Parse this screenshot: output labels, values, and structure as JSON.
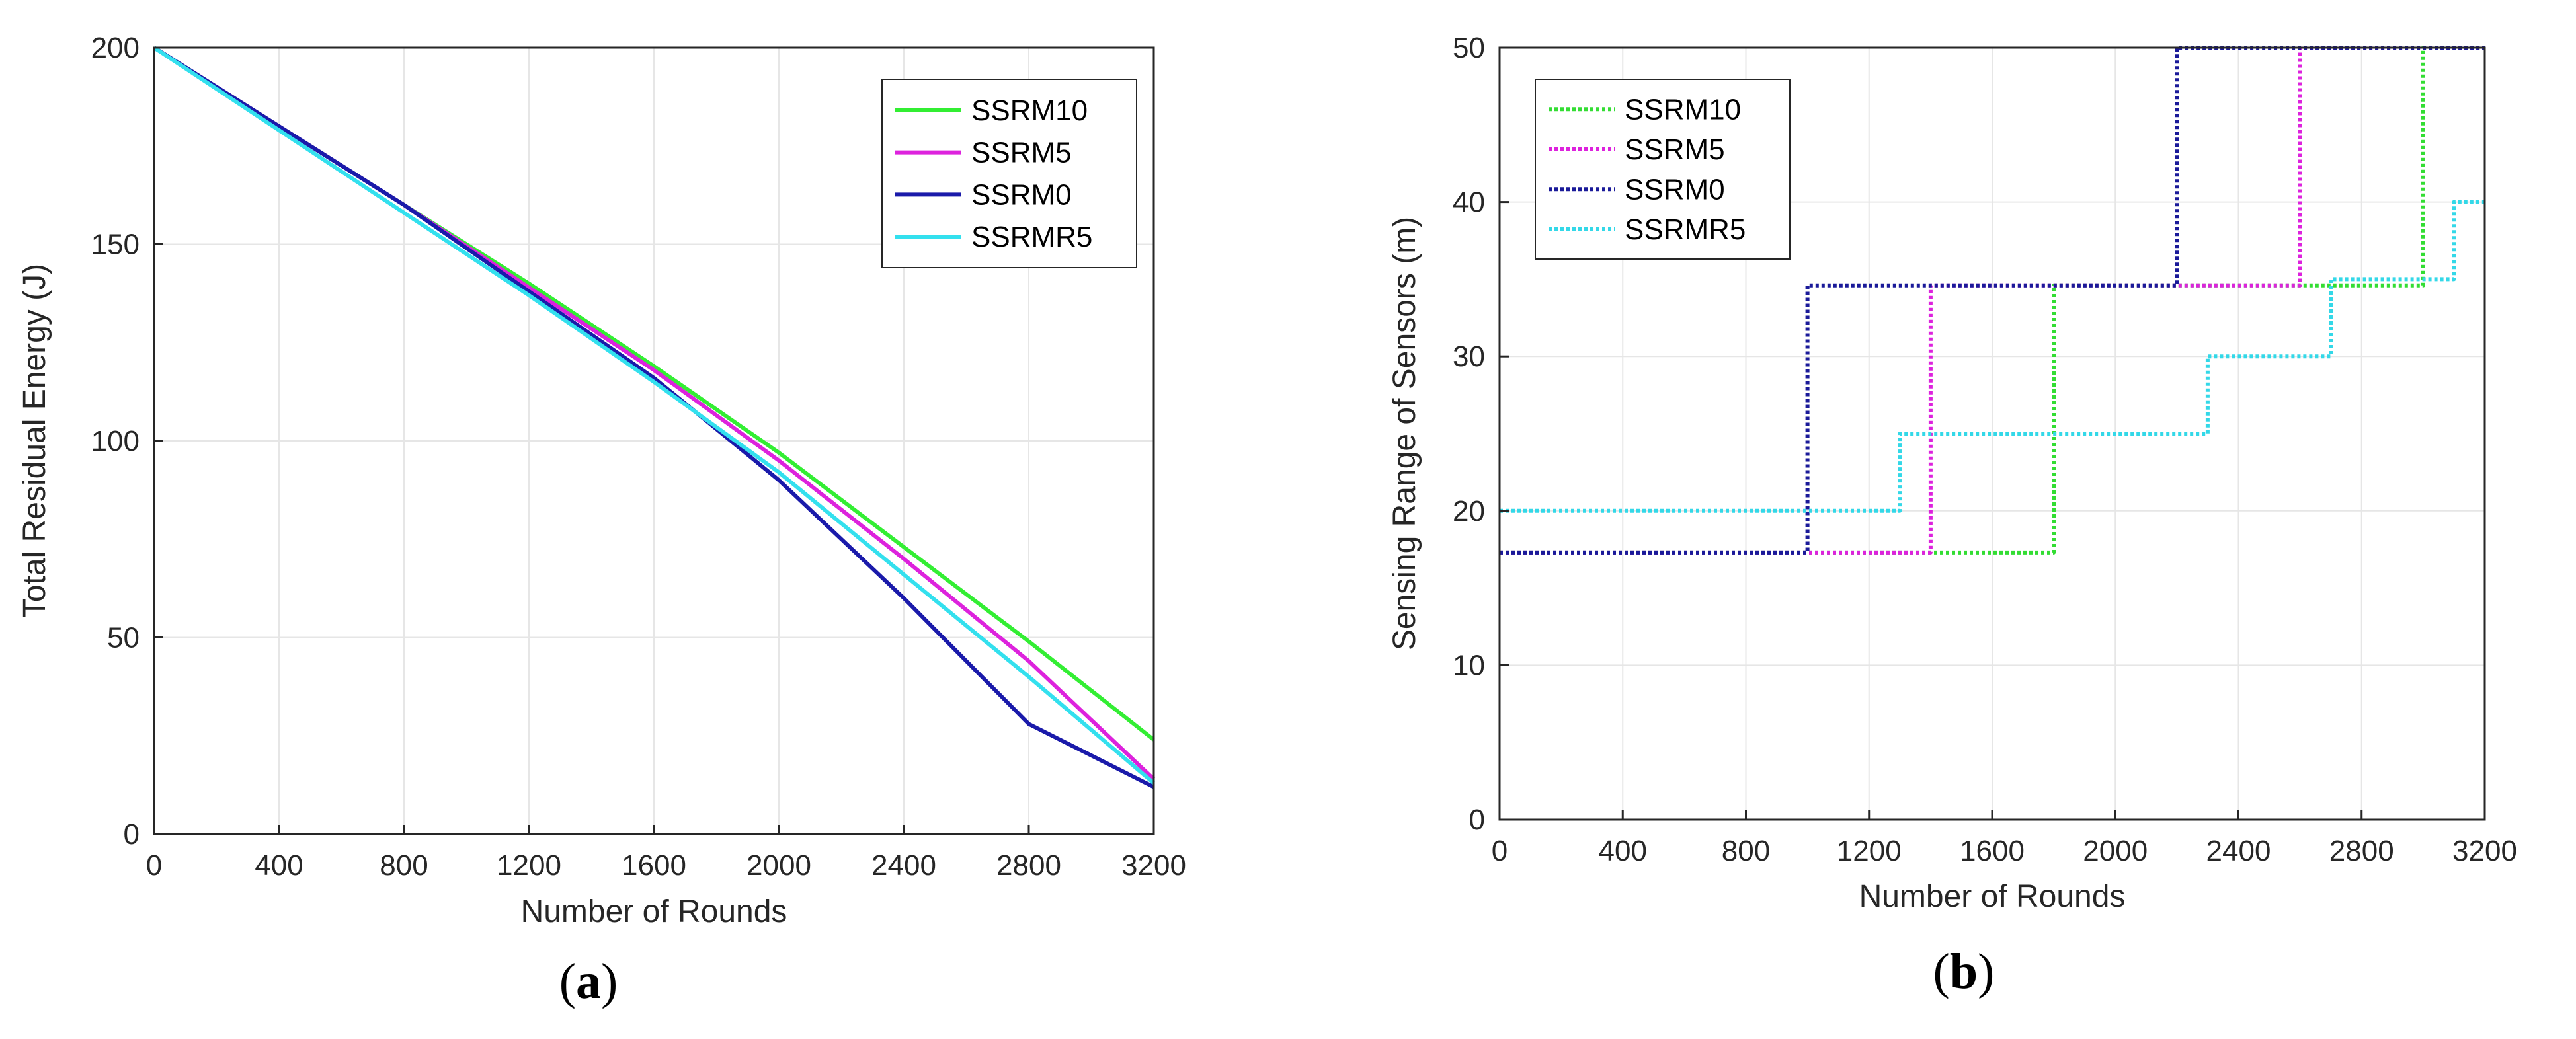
{
  "chart_data": [
    {
      "type": "line",
      "panel": "a",
      "xlabel": "Number of Rounds",
      "ylabel": "Total Residual Energy (J)",
      "xlim": [
        0,
        3200
      ],
      "ylim": [
        0,
        200
      ],
      "xticks": [
        0,
        400,
        800,
        1200,
        1600,
        2000,
        2400,
        2800,
        3200
      ],
      "yticks": [
        0,
        50,
        100,
        150,
        200
      ],
      "grid": true,
      "legend_position": "top-right",
      "series": [
        {
          "name": "SSRM10",
          "color": "#33ee33",
          "style": "solid",
          "points": [
            [
              0,
              200
            ],
            [
              400,
              180
            ],
            [
              800,
              160
            ],
            [
              1200,
              140
            ],
            [
              1600,
              119
            ],
            [
              2000,
              97
            ],
            [
              2400,
              73
            ],
            [
              2800,
              49
            ],
            [
              3200,
              24
            ]
          ]
        },
        {
          "name": "SSRM5",
          "color": "#dd22dd",
          "style": "solid",
          "points": [
            [
              0,
              200
            ],
            [
              400,
              180
            ],
            [
              800,
              160
            ],
            [
              1200,
              139
            ],
            [
              1600,
              118
            ],
            [
              2000,
              95
            ],
            [
              2400,
              70
            ],
            [
              2800,
              44
            ],
            [
              3200,
              14
            ]
          ]
        },
        {
          "name": "SSRM0",
          "color": "#1a1aaa",
          "style": "solid",
          "points": [
            [
              0,
              200
            ],
            [
              400,
              180
            ],
            [
              800,
              160
            ],
            [
              1200,
              138
            ],
            [
              1600,
              116
            ],
            [
              2000,
              90
            ],
            [
              2400,
              60
            ],
            [
              2800,
              28
            ],
            [
              3200,
              12
            ]
          ]
        },
        {
          "name": "SSRMR5",
          "color": "#33e0ee",
          "style": "solid",
          "points": [
            [
              0,
              200
            ],
            [
              400,
              179
            ],
            [
              800,
              158
            ],
            [
              1200,
              137
            ],
            [
              1600,
              115
            ],
            [
              2000,
              92
            ],
            [
              2400,
              66
            ],
            [
              2800,
              40
            ],
            [
              3200,
              13
            ]
          ]
        }
      ]
    },
    {
      "type": "line",
      "panel": "b",
      "xlabel": "Number of Rounds",
      "ylabel": "Sensing Range of Sensors (m)",
      "xlim": [
        0,
        3200
      ],
      "ylim": [
        0,
        50
      ],
      "xticks": [
        0,
        400,
        800,
        1200,
        1600,
        2000,
        2400,
        2800,
        3200
      ],
      "yticks": [
        0,
        10,
        20,
        30,
        40,
        50
      ],
      "grid": true,
      "legend_position": "top-left",
      "series": [
        {
          "name": "SSRM10",
          "color": "#33dd33",
          "style": "dotted",
          "points": [
            [
              0,
              17.3
            ],
            [
              1800,
              17.3
            ],
            [
              1800,
              34.6
            ],
            [
              3000,
              34.6
            ],
            [
              3000,
              50
            ],
            [
              3200,
              50
            ]
          ]
        },
        {
          "name": "SSRM5",
          "color": "#dd22dd",
          "style": "dotted",
          "points": [
            [
              0,
              17.3
            ],
            [
              1400,
              17.3
            ],
            [
              1400,
              34.6
            ],
            [
              2600,
              34.6
            ],
            [
              2600,
              50
            ],
            [
              3200,
              50
            ]
          ]
        },
        {
          "name": "SSRM0",
          "color": "#1a1a99",
          "style": "dotted",
          "points": [
            [
              0,
              17.3
            ],
            [
              1000,
              17.3
            ],
            [
              1000,
              34.6
            ],
            [
              2200,
              34.6
            ],
            [
              2200,
              50
            ],
            [
              3200,
              50
            ]
          ]
        },
        {
          "name": "SSRMR5",
          "color": "#33d8e8",
          "style": "dotted",
          "points": [
            [
              0,
              20
            ],
            [
              1300,
              20
            ],
            [
              1300,
              25
            ],
            [
              2300,
              25
            ],
            [
              2300,
              30
            ],
            [
              2700,
              30
            ],
            [
              2700,
              35
            ],
            [
              3100,
              35
            ],
            [
              3100,
              40
            ],
            [
              3200,
              40
            ]
          ]
        }
      ]
    }
  ],
  "captions": [
    {
      "open": "(",
      "letter": "a",
      "close": ")"
    },
    {
      "open": "(",
      "letter": "b",
      "close": ")"
    }
  ]
}
